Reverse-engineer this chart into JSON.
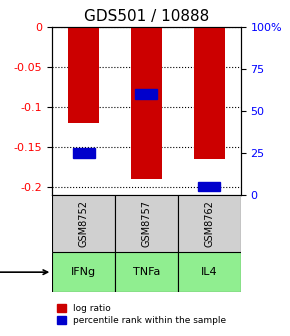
{
  "title": "GDS501 / 10888",
  "categories": [
    "IFNg",
    "TNFa",
    "IL4"
  ],
  "gsm_labels": [
    "GSM8752",
    "GSM8757",
    "GSM8762"
  ],
  "log_ratios": [
    -0.12,
    -0.19,
    -0.165
  ],
  "percentile_ranks": [
    0.25,
    0.6,
    0.05
  ],
  "ylim_left": [
    -0.21,
    0.0
  ],
  "ylim_right": [
    0.0,
    1.0
  ],
  "yticks_left": [
    0,
    -0.05,
    -0.1,
    -0.15,
    -0.2
  ],
  "yticks_right": [
    0,
    0.25,
    0.5,
    0.75,
    1.0
  ],
  "ytick_labels_right": [
    "0",
    "25",
    "50",
    "75",
    "100%"
  ],
  "bar_color": "#cc0000",
  "blue_color": "#0000cc",
  "gray_bg": "#d0d0d0",
  "green_bg": "#90ee90",
  "title_fontsize": 11,
  "bar_width": 0.5,
  "blue_marker_size": 0.012
}
